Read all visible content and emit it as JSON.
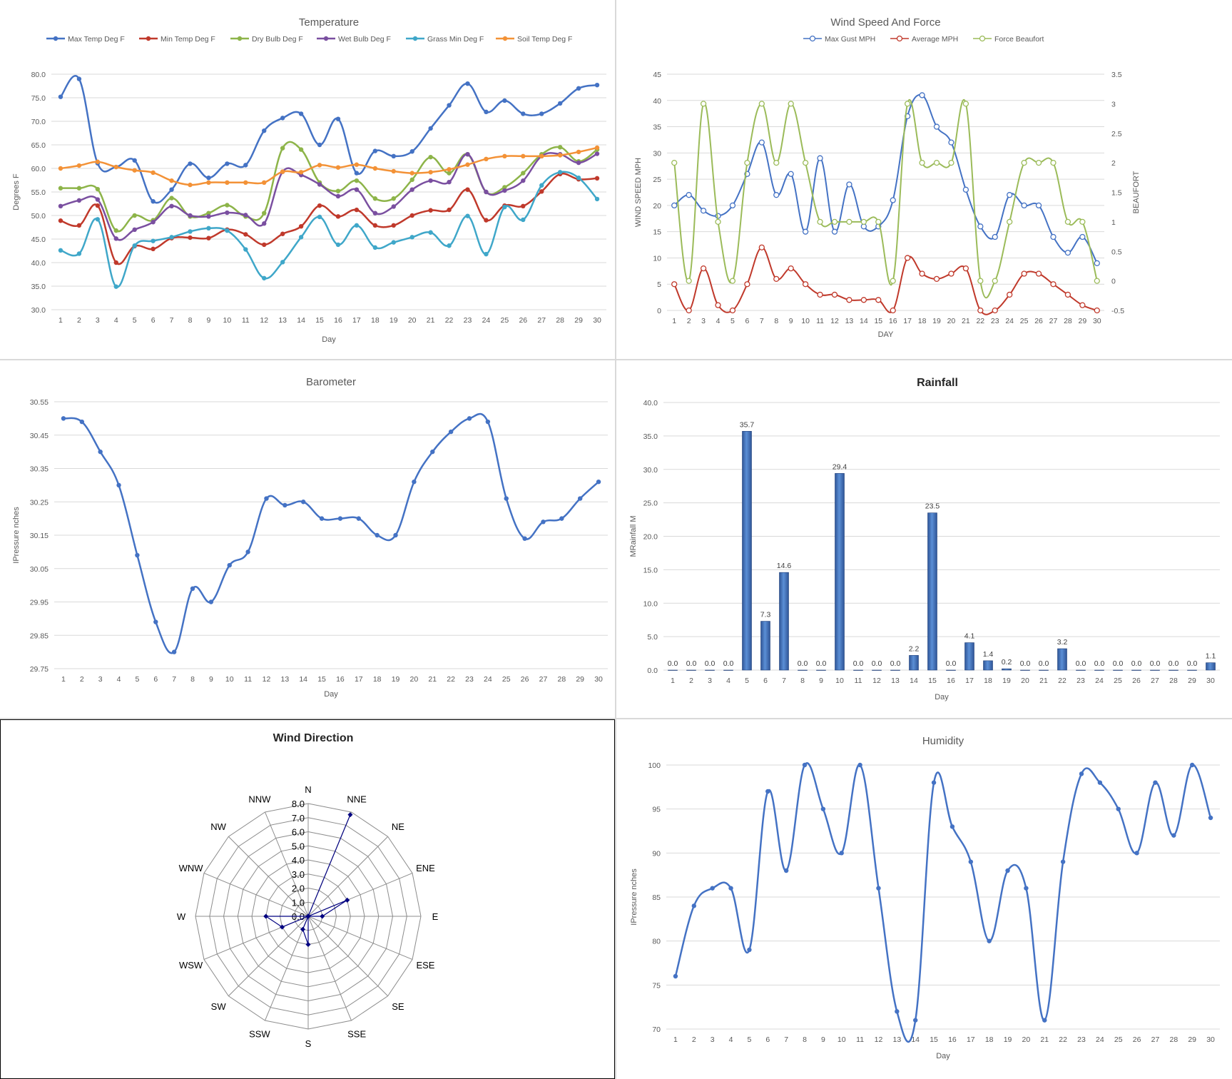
{
  "colors": {
    "max_temp": "#4472C4",
    "min_temp": "#C0392B",
    "dry_bulb": "#8DB449",
    "wet_bulb": "#7A4FA0",
    "grass_min": "#3FA7C9",
    "soil_temp": "#F39237",
    "gust": "#4472C4",
    "avg_mph": "#C0392B",
    "beaufort": "#9BBB59",
    "line": "#4472C4",
    "radar": "#000080",
    "grid": "#d9d9d9"
  },
  "chart_data": [
    {
      "id": "temperature",
      "type": "line",
      "title": "Temperature",
      "xlabel": "Day",
      "ylabel": "Degrees F",
      "x": [
        1,
        2,
        3,
        4,
        5,
        6,
        7,
        8,
        9,
        10,
        11,
        12,
        13,
        14,
        15,
        16,
        17,
        18,
        19,
        20,
        21,
        22,
        23,
        24,
        25,
        26,
        27,
        28,
        29,
        30
      ],
      "ylim": [
        30,
        80
      ],
      "yticks": [
        "30.0",
        "35.0",
        "40.0",
        "45.0",
        "50.0",
        "55.0",
        "60.0",
        "65.0",
        "70.0",
        "75.0",
        "80.0"
      ],
      "legend_position": "top",
      "series": [
        {
          "name": "Max Temp Deg F",
          "color_key": "max_temp",
          "values": [
            75.2,
            79.0,
            61.1,
            60.3,
            61.7,
            53.0,
            55.5,
            61.0,
            58.0,
            61.0,
            60.7,
            68.0,
            70.7,
            71.6,
            65.0,
            70.5,
            59.0,
            63.7,
            62.6,
            63.6,
            68.5,
            73.4,
            78.0,
            72.0,
            74.4,
            71.6,
            71.6,
            73.8,
            77.0,
            77.7
          ]
        },
        {
          "name": "Min Temp Deg F",
          "color_key": "min_temp",
          "values": [
            48.9,
            47.9,
            52.1,
            40.0,
            43.5,
            42.9,
            45.2,
            45.3,
            45.2,
            47.0,
            46.0,
            43.8,
            46.1,
            47.7,
            52.1,
            49.8,
            51.2,
            47.9,
            47.9,
            50.0,
            51.1,
            51.2,
            55.5,
            49.0,
            52.1,
            52.0,
            55.1,
            58.8,
            57.7,
            57.9
          ]
        },
        {
          "name": "Dry Bulb Deg F",
          "color_key": "dry_bulb",
          "values": [
            55.8,
            55.8,
            55.6,
            46.8,
            50.0,
            49.0,
            53.7,
            49.8,
            50.5,
            52.2,
            49.8,
            50.5,
            64.3,
            64.0,
            57.0,
            55.2,
            57.4,
            53.6,
            53.6,
            57.6,
            62.4,
            59.0,
            63.0,
            55.0,
            56.0,
            59.0,
            63.0,
            64.5,
            61.5,
            64.0
          ]
        },
        {
          "name": "Wet Bulb Deg F",
          "color_key": "wet_bulb",
          "values": [
            52.0,
            53.2,
            53.4,
            45.1,
            47.0,
            48.6,
            52.0,
            50.0,
            49.8,
            50.6,
            50.1,
            48.3,
            59.3,
            58.6,
            56.6,
            54.1,
            55.5,
            50.5,
            51.9,
            55.5,
            57.4,
            57.1,
            63.0,
            55.0,
            55.3,
            57.4,
            62.6,
            63.0,
            61.2,
            63.1
          ]
        },
        {
          "name": "Grass Min Deg F",
          "color_key": "grass_min",
          "values": [
            42.6,
            41.9,
            49.2,
            34.9,
            43.6,
            44.6,
            45.4,
            46.6,
            47.3,
            46.8,
            42.8,
            36.7,
            40.1,
            45.4,
            49.7,
            43.8,
            47.9,
            43.2,
            44.3,
            45.4,
            46.4,
            43.6,
            49.9,
            41.8,
            51.8,
            49.1,
            56.4,
            59.2,
            58.0,
            53.5
          ]
        },
        {
          "name": "Soil Temp Deg F",
          "color_key": "soil_temp",
          "values": [
            60.0,
            60.6,
            61.4,
            60.3,
            59.6,
            59.1,
            57.4,
            56.5,
            57.0,
            57.0,
            57.0,
            57.0,
            59.3,
            59.2,
            60.7,
            60.2,
            60.8,
            60.0,
            59.4,
            59.0,
            59.2,
            59.8,
            60.8,
            62.0,
            62.6,
            62.6,
            62.6,
            62.8,
            63.5,
            64.4
          ]
        }
      ]
    },
    {
      "id": "wind",
      "type": "line",
      "title": "Wind Speed And Force",
      "xlabel": "DAY",
      "ylabel": "WIND SPEED MPH",
      "y2label": "BEAUFORT",
      "x": [
        1,
        2,
        3,
        4,
        5,
        6,
        7,
        8,
        9,
        10,
        11,
        12,
        13,
        14,
        15,
        16,
        17,
        18,
        19,
        20,
        21,
        22,
        23,
        24,
        25,
        26,
        27,
        28,
        29,
        30
      ],
      "ylim": [
        0,
        45
      ],
      "y2lim": [
        -0.5,
        3.5
      ],
      "yticks": [
        "0",
        "5",
        "10",
        "15",
        "20",
        "25",
        "30",
        "35",
        "40",
        "45"
      ],
      "y2ticks": [
        "-0.5",
        "0",
        "0.5",
        "1",
        "1.5",
        "2",
        "2.5",
        "3",
        "3.5"
      ],
      "legend_position": "top",
      "series": [
        {
          "name": "Max Gust MPH",
          "color_key": "gust",
          "axis": "left",
          "values": [
            20,
            22,
            19,
            18,
            20,
            26,
            32,
            22,
            26,
            15,
            29,
            15,
            24,
            16,
            16,
            21,
            37,
            41,
            35,
            32,
            23,
            16,
            14,
            22,
            20,
            20,
            14,
            11,
            14,
            9
          ]
        },
        {
          "name": "Average MPH",
          "color_key": "avg_mph",
          "axis": "left",
          "values": [
            5,
            0,
            8,
            1,
            0,
            5,
            12,
            6,
            8,
            5,
            3,
            3,
            2,
            2,
            2,
            0,
            10,
            7,
            6,
            7,
            8,
            0,
            0,
            3,
            7,
            7,
            5,
            3,
            1,
            0
          ]
        },
        {
          "name": "Force Beaufort",
          "color_key": "beaufort",
          "axis": "right",
          "values": [
            2,
            0,
            3,
            1,
            0,
            2,
            3,
            2,
            3,
            2,
            1,
            1,
            1,
            1,
            1,
            0,
            3,
            2,
            2,
            2,
            3,
            0,
            0,
            1,
            2,
            2,
            2,
            1,
            1,
            0
          ]
        }
      ]
    },
    {
      "id": "barometer",
      "type": "line",
      "title": "Barometer",
      "xlabel": "Day",
      "ylabel": "IPressure nches",
      "x": [
        1,
        2,
        3,
        4,
        5,
        6,
        7,
        8,
        9,
        10,
        11,
        12,
        13,
        14,
        15,
        16,
        17,
        18,
        19,
        20,
        21,
        22,
        23,
        24,
        25,
        26,
        27,
        28,
        29,
        30
      ],
      "ylim": [
        29.75,
        30.55
      ],
      "yticks": [
        "29.75",
        "29.85",
        "29.95",
        "30.05",
        "30.15",
        "30.25",
        "30.35",
        "30.45",
        "30.55"
      ],
      "series": [
        {
          "name": "",
          "color_key": "line",
          "values": [
            30.5,
            30.49,
            30.4,
            30.3,
            30.09,
            29.89,
            29.8,
            29.99,
            29.95,
            30.06,
            30.1,
            30.26,
            30.24,
            30.25,
            30.2,
            30.2,
            30.2,
            30.15,
            30.15,
            30.31,
            30.4,
            30.46,
            30.5,
            30.49,
            30.26,
            30.14,
            30.19,
            30.2,
            30.26,
            30.31
          ]
        }
      ]
    },
    {
      "id": "rainfall",
      "type": "bar",
      "title": "Rainfall",
      "xlabel": "Day",
      "ylabel": "MRainfall M",
      "categories": [
        "1",
        "2",
        "3",
        "4",
        "5",
        "6",
        "7",
        "8",
        "9",
        "10",
        "11",
        "12",
        "13",
        "14",
        "15",
        "16",
        "17",
        "18",
        "19",
        "20",
        "21",
        "22",
        "23",
        "24",
        "25",
        "26",
        "27",
        "28",
        "29",
        "30"
      ],
      "values": [
        0,
        0,
        0,
        0,
        35.7,
        7.3,
        14.6,
        0,
        0,
        29.4,
        0,
        0,
        0,
        2.2,
        23.5,
        0,
        4.1,
        1.4,
        0.2,
        0,
        0,
        3.2,
        0,
        0,
        0,
        0,
        0,
        0,
        0,
        1.1
      ],
      "value_labels": [
        "0.0",
        "0.0",
        "0.0",
        "0.0",
        "35.7",
        "7.3",
        "14.6",
        "0.0",
        "0.0",
        "29.4",
        "0.0",
        "0.0",
        "0.0",
        "2.2",
        "23.5",
        "0.0",
        "4.1",
        "1.4",
        "0.2",
        "0.0",
        "0.0",
        "3.2",
        "0.0",
        "0.0",
        "0.0",
        "0.0",
        "0.0",
        "0.0",
        "0.0",
        "1.1"
      ],
      "ylim": [
        0,
        40
      ],
      "yticks": [
        "0.0",
        "5.0",
        "10.0",
        "15.0",
        "20.0",
        "25.0",
        "30.0",
        "35.0",
        "40.0"
      ]
    },
    {
      "id": "wind_direction",
      "type": "radar",
      "title": "Wind Direction",
      "categories": [
        "N",
        "NNE",
        "NE",
        "ENE",
        "E",
        "ESE",
        "SE",
        "SSE",
        "S",
        "SSW",
        "SW",
        "WSW",
        "W",
        "WNW",
        "NW",
        "NNW"
      ],
      "values": [
        0,
        7.8,
        0,
        3.0,
        1.0,
        0,
        0,
        0,
        2.0,
        1.0,
        0,
        2.0,
        3.0,
        0,
        0,
        0
      ],
      "rlim": [
        0,
        8
      ],
      "rticks": [
        "0.0",
        "1.0",
        "2.0",
        "3.0",
        "4.0",
        "5.0",
        "6.0",
        "7.0",
        "8.0"
      ]
    },
    {
      "id": "humidity",
      "type": "line",
      "title": "Humidity",
      "xlabel": "Day",
      "ylabel": "IPressure nches",
      "x": [
        1,
        2,
        3,
        4,
        5,
        6,
        7,
        8,
        9,
        10,
        11,
        12,
        13,
        14,
        15,
        16,
        17,
        18,
        19,
        20,
        21,
        22,
        23,
        24,
        25,
        26,
        27,
        28,
        29,
        30
      ],
      "ylim": [
        70,
        100
      ],
      "yticks": [
        "70",
        "75",
        "80",
        "85",
        "90",
        "95",
        "100"
      ],
      "series": [
        {
          "name": "",
          "color_key": "line",
          "values": [
            76,
            84,
            86,
            86,
            79,
            97,
            88,
            100,
            95,
            90,
            100,
            86,
            72,
            71,
            98,
            93,
            89,
            80,
            88,
            86,
            71,
            89,
            99,
            98,
            95,
            90,
            98,
            92,
            100,
            94
          ]
        }
      ]
    }
  ]
}
